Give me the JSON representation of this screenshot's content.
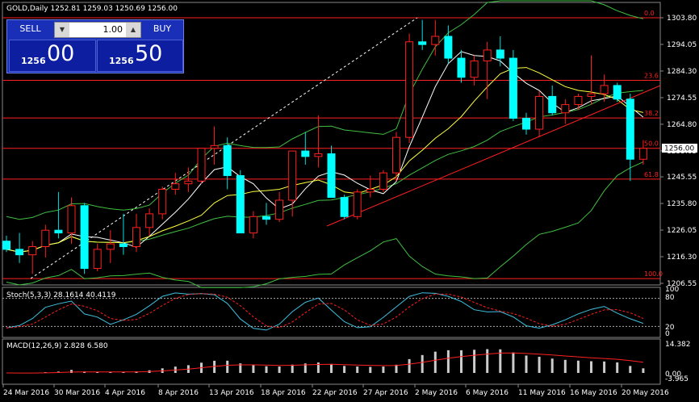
{
  "title_bar": {
    "symbol": "GOLD,Daily",
    "ohlc": "1252.81 1259.03 1250.69 1256.00"
  },
  "trade_panel": {
    "sell_label": "SELL",
    "buy_label": "BUY",
    "lot": "1.00",
    "sell_small": "1256",
    "sell_big": "00",
    "buy_small": "1256",
    "buy_big": "50"
  },
  "price_axis": [
    "1303.80",
    "1294.05",
    "1284.30",
    "1274.55",
    "1264.80",
    "1255.05",
    "1245.55",
    "1235.80",
    "1226.05",
    "1216.30",
    "1206.55"
  ],
  "current_price": "1256.00",
  "fib_levels": [
    {
      "label": "0.0",
      "price": 1303.8
    },
    {
      "label": "23.6",
      "price": 1280.9
    },
    {
      "label": "38.2",
      "price": 1267.1
    },
    {
      "label": "50.0",
      "price": 1256.0
    },
    {
      "label": "61.8",
      "price": 1244.7
    },
    {
      "label": "100.0",
      "price": 1208.3
    }
  ],
  "date_axis": [
    "24 Mar 2016",
    "30 Mar 2016",
    "4 Apr 2016",
    "8 Apr 2016",
    "13 Apr 2016",
    "18 Apr 2016",
    "22 Apr 2016",
    "27 Apr 2016",
    "2 May 2016",
    "6 May 2016",
    "11 May 2016",
    "16 May 2016",
    "20 May 2016"
  ],
  "stoch": {
    "label": "Stoch(5,3,3) 28.1614 40.4119",
    "levels": [
      "100",
      "80",
      "20",
      "0"
    ]
  },
  "macd": {
    "label": "MACD(12,26,9) 2.828 6.580",
    "levels": [
      "14.382",
      "0.00",
      "-3.965"
    ]
  },
  "candles": [
    [
      1222,
      1224,
      1218,
      1219
    ],
    [
      1219,
      1225,
      1214,
      1217
    ],
    [
      1217,
      1222,
      1210,
      1220
    ],
    [
      1220,
      1228,
      1216,
      1226
    ],
    [
      1226,
      1240,
      1223,
      1225
    ],
    [
      1225,
      1238,
      1221,
      1235
    ],
    [
      1235,
      1236,
      1210,
      1212
    ],
    [
      1212,
      1221,
      1211,
      1219
    ],
    [
      1219,
      1226,
      1214,
      1221
    ],
    [
      1221,
      1232,
      1217,
      1220
    ],
    [
      1220,
      1232,
      1218,
      1227
    ],
    [
      1227,
      1234,
      1224,
      1232
    ],
    [
      1232,
      1242,
      1230,
      1241
    ],
    [
      1241,
      1247,
      1239,
      1243
    ],
    [
      1243,
      1249,
      1240,
      1244
    ],
    [
      1244,
      1256,
      1243,
      1256
    ],
    [
      1256,
      1264,
      1250,
      1257
    ],
    [
      1257,
      1260,
      1241,
      1246
    ],
    [
      1246,
      1248,
      1225,
      1225
    ],
    [
      1225,
      1233,
      1223,
      1231
    ],
    [
      1231,
      1236,
      1228,
      1230
    ],
    [
      1230,
      1240,
      1229,
      1237
    ],
    [
      1237,
      1255,
      1231,
      1255
    ],
    [
      1255,
      1262,
      1250,
      1253
    ],
    [
      1253,
      1268,
      1249,
      1254
    ],
    [
      1254,
      1257,
      1238,
      1238
    ],
    [
      1238,
      1239,
      1230,
      1231
    ],
    [
      1231,
      1241,
      1230,
      1240
    ],
    [
      1240,
      1246,
      1238,
      1241
    ],
    [
      1241,
      1248,
      1240,
      1247
    ],
    [
      1247,
      1262,
      1244,
      1260
    ],
    [
      1260,
      1298,
      1258,
      1295
    ],
    [
      1295,
      1303,
      1292,
      1294
    ],
    [
      1294,
      1303,
      1290,
      1297
    ],
    [
      1297,
      1301,
      1287,
      1289
    ],
    [
      1289,
      1292,
      1280,
      1282
    ],
    [
      1282,
      1290,
      1279,
      1288
    ],
    [
      1288,
      1295,
      1274,
      1292
    ],
    [
      1292,
      1297,
      1286,
      1289
    ],
    [
      1289,
      1292,
      1266,
      1267
    ],
    [
      1267,
      1269,
      1261,
      1263
    ],
    [
      1263,
      1277,
      1260,
      1275
    ],
    [
      1275,
      1279,
      1268,
      1269
    ],
    [
      1269,
      1274,
      1265,
      1272
    ],
    [
      1272,
      1276,
      1270,
      1275
    ],
    [
      1275,
      1290,
      1272,
      1276
    ],
    [
      1276,
      1283,
      1273,
      1279
    ],
    [
      1279,
      1280,
      1273,
      1274
    ],
    [
      1274,
      1276,
      1244,
      1252
    ],
    [
      1252,
      1259,
      1250,
      1256
    ]
  ],
  "colors": {
    "up": "#ff2020",
    "down": "#00ffff",
    "fib": "#ff2020",
    "bb": "#40c040",
    "ma_fast": "#ffffff",
    "ma_slow": "#ffff40"
  }
}
